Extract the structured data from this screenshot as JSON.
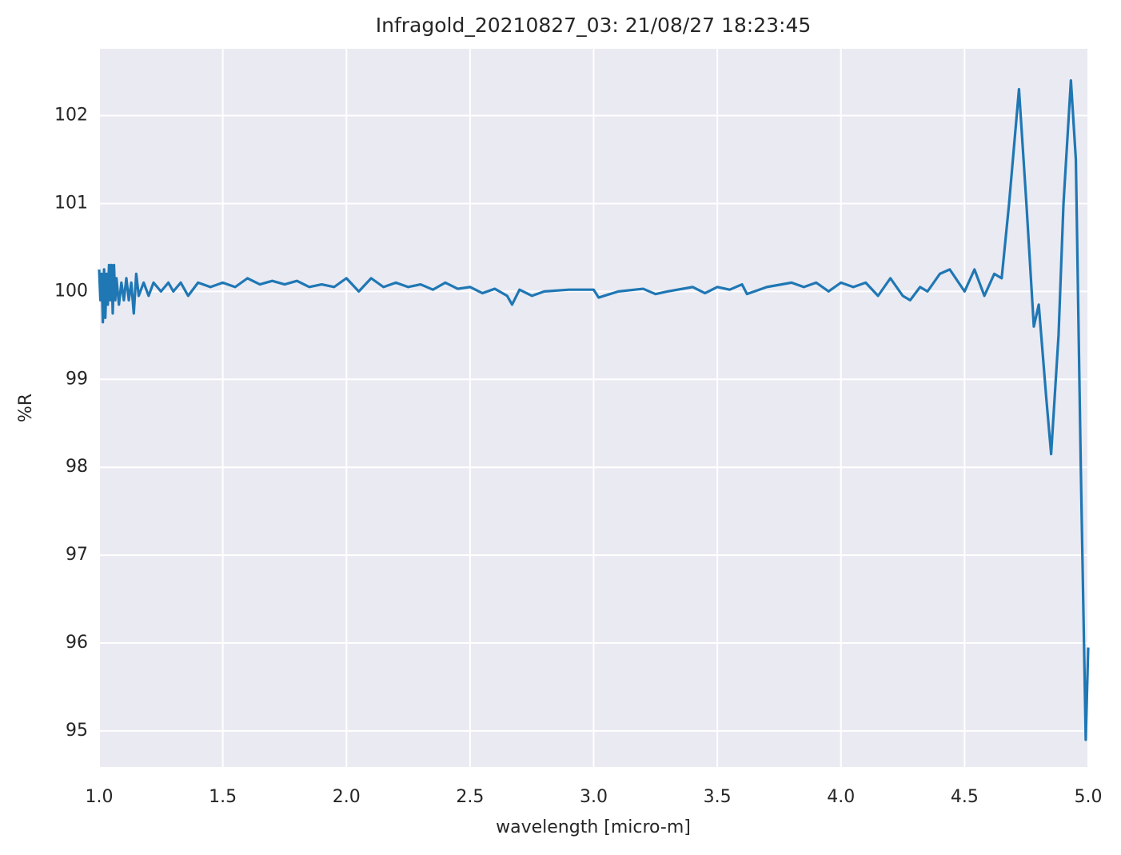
{
  "chart_data": {
    "type": "line",
    "title": "Infragold_20210827_03:  21/08/27 18:23:45",
    "x_label": "wavelength [micro-m]",
    "y_label": "%R",
    "xlim": [
      1,
      5
    ],
    "ylim": [
      94.59,
      102.76
    ],
    "xticks": [
      {
        "value": 1,
        "label": "1.0"
      },
      1.5,
      {
        "value": 2,
        "label": "2.0"
      },
      2.5,
      {
        "value": 3,
        "label": "3.0"
      },
      3.5,
      {
        "value": 4,
        "label": "4.0"
      },
      4.5,
      {
        "value": 5,
        "label": "5.0"
      }
    ],
    "yticks": [
      95,
      96,
      97,
      98,
      99,
      100,
      101,
      102
    ],
    "grid": true,
    "color": "#1f77b4",
    "x": [
      1.0,
      1.005,
      1.01,
      1.015,
      1.02,
      1.025,
      1.03,
      1.035,
      1.04,
      1.045,
      1.05,
      1.055,
      1.06,
      1.065,
      1.07,
      1.08,
      1.09,
      1.1,
      1.11,
      1.12,
      1.13,
      1.14,
      1.15,
      1.16,
      1.18,
      1.2,
      1.22,
      1.25,
      1.28,
      1.3,
      1.33,
      1.36,
      1.4,
      1.45,
      1.5,
      1.55,
      1.6,
      1.65,
      1.7,
      1.75,
      1.8,
      1.85,
      1.9,
      1.95,
      2.0,
      2.05,
      2.1,
      2.15,
      2.2,
      2.25,
      2.3,
      2.35,
      2.4,
      2.45,
      2.5,
      2.55,
      2.6,
      2.65,
      2.67,
      2.7,
      2.75,
      2.8,
      2.9,
      3.0,
      3.02,
      3.1,
      3.2,
      3.25,
      3.3,
      3.4,
      3.45,
      3.5,
      3.55,
      3.6,
      3.62,
      3.7,
      3.8,
      3.85,
      3.9,
      3.95,
      4.0,
      4.05,
      4.1,
      4.15,
      4.2,
      4.25,
      4.28,
      4.32,
      4.35,
      4.4,
      4.44,
      4.5,
      4.54,
      4.58,
      4.62,
      4.65,
      4.68,
      4.72,
      4.75,
      4.78,
      4.8,
      4.83,
      4.85,
      4.88,
      4.9,
      4.93,
      4.95,
      4.97,
      4.99,
      5.0
    ],
    "values": [
      100.25,
      99.9,
      100.2,
      99.65,
      100.25,
      99.7,
      100.2,
      99.85,
      100.3,
      99.9,
      100.3,
      99.75,
      100.3,
      99.9,
      100.15,
      99.85,
      100.1,
      99.9,
      100.15,
      99.9,
      100.1,
      99.75,
      100.2,
      99.95,
      100.1,
      99.95,
      100.1,
      100.0,
      100.1,
      100.0,
      100.1,
      99.95,
      100.1,
      100.05,
      100.1,
      100.05,
      100.15,
      100.08,
      100.12,
      100.08,
      100.12,
      100.05,
      100.08,
      100.05,
      100.15,
      100.0,
      100.15,
      100.05,
      100.1,
      100.05,
      100.08,
      100.02,
      100.1,
      100.03,
      100.05,
      99.98,
      100.03,
      99.95,
      99.85,
      100.02,
      99.95,
      100.0,
      100.02,
      100.02,
      99.93,
      100.0,
      100.03,
      99.97,
      100.0,
      100.05,
      99.98,
      100.05,
      100.02,
      100.08,
      99.97,
      100.05,
      100.1,
      100.05,
      100.1,
      100.0,
      100.1,
      100.05,
      100.1,
      99.95,
      100.15,
      99.95,
      99.9,
      100.05,
      100.0,
      100.2,
      100.25,
      100.0,
      100.25,
      99.95,
      100.2,
      100.15,
      101.0,
      102.3,
      101.0,
      99.6,
      99.85,
      98.8,
      98.15,
      99.5,
      101.0,
      102.4,
      101.5,
      98.0,
      94.9,
      95.95
    ]
  }
}
